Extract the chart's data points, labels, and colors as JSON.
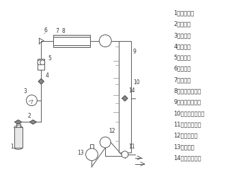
{
  "legend_items": [
    "1、氢气钙瓶",
    "2、减压阀",
    "3、压力表",
    "4、调节鄀",
    "5、流量计",
    "6、止逆鄀",
    "7、预热器",
    "8、预热器加热炉",
    "9、固定床反应器",
    "10、填料复合床层",
    "11、取样六通鄀",
    "12、苯计量泵",
    "13、苯储罐",
    "14、三通放气鄀"
  ],
  "bg_color": "#ffffff",
  "lc": "#555555",
  "tc": "#333333",
  "fs": 6.0
}
